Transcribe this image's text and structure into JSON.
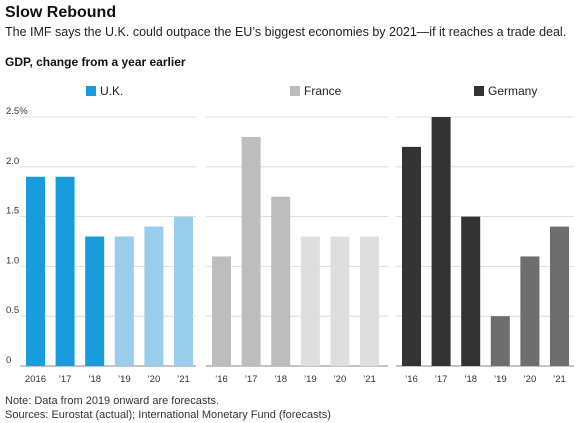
{
  "header": {
    "title": "Slow Rebound",
    "subtitle": "The IMF says the U.K. could outpace the EU’s biggest economies by 2021—if it reaches a trade deal.",
    "measure": "GDP, change from a year earlier"
  },
  "footer": {
    "note": "Note: Data from 2019 onward are forecasts.",
    "sources": "Sources: Eurostat (actual); International Monetary Fund (forecasts)"
  },
  "chart_data": {
    "type": "bar",
    "categories": [
      "2016",
      "’17",
      "’18",
      "’19",
      "’20",
      "’21"
    ],
    "ylim": [
      0,
      2.5
    ],
    "yticks": [
      0,
      0.5,
      1.0,
      1.5,
      2.0,
      2.5
    ],
    "ytick_labels": [
      "0",
      "0.5",
      "1.0",
      "1.5",
      "2.0",
      "2.5%"
    ],
    "forecast_from_index": 3,
    "grid": true,
    "legend_position": "top",
    "series": [
      {
        "name": "U.K.",
        "tick_labels": [
          "2016",
          "’17",
          "’18",
          "’19",
          "’20",
          "’21"
        ],
        "values": [
          1.9,
          1.9,
          1.3,
          1.3,
          1.4,
          1.5
        ],
        "color_actual": "#1a9bdc",
        "color_forecast": "#98cdec"
      },
      {
        "name": "France",
        "tick_labels": [
          "’16",
          "’17",
          "’18",
          "’19",
          "’20",
          "’21"
        ],
        "values": [
          1.1,
          2.3,
          1.7,
          1.3,
          1.3,
          1.3
        ],
        "color_actual": "#bdbdbd",
        "color_forecast": "#dedede"
      },
      {
        "name": "Germany",
        "tick_labels": [
          "’16",
          "’17",
          "’18",
          "’19",
          "’20",
          "’21"
        ],
        "values": [
          2.2,
          2.5,
          1.5,
          0.5,
          1.1,
          1.4
        ],
        "color_actual": "#333333",
        "color_forecast": "#6e6e6e"
      }
    ]
  }
}
